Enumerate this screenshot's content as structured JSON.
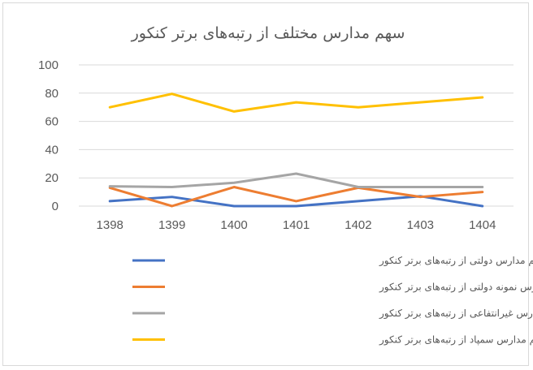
{
  "chart_data": {
    "type": "line",
    "title": "سهم مدارس مختلف از رتبه‌های برتر کنکور",
    "categories": [
      "1398",
      "1399",
      "1400",
      "1401",
      "1402",
      "1403",
      "1404"
    ],
    "ylim": [
      0,
      100
    ],
    "yticks": [
      "0",
      "20",
      "40",
      "60",
      "80",
      "100"
    ],
    "grid": true,
    "legend_position": "bottom",
    "series": [
      {
        "name": "سهم مدارس دولتی از رتبه‌های برتر کنکور",
        "color": "#4472c4",
        "values": [
          3.5,
          6.5,
          0,
          0,
          3.5,
          7,
          0
        ]
      },
      {
        "name": "سهم مدارس نمونه دولتی از رتبه‌های برتر کنکور",
        "color": "#ed7d31",
        "values": [
          13,
          0,
          13.5,
          3.5,
          13,
          6.5,
          10
        ]
      },
      {
        "name": "سهم مدارس غیرانتفاعی از رتبه‌های برتر کنکور",
        "color": "#a5a5a5",
        "values": [
          14,
          13.5,
          16.5,
          23,
          13.5,
          13.5,
          13.5
        ]
      },
      {
        "name": "سهم مدارس سمپاد از رتبه‌های برتر کنکور",
        "color": "#ffc000",
        "values": [
          70,
          79.5,
          67,
          73.5,
          70,
          73.5,
          77
        ]
      }
    ]
  }
}
